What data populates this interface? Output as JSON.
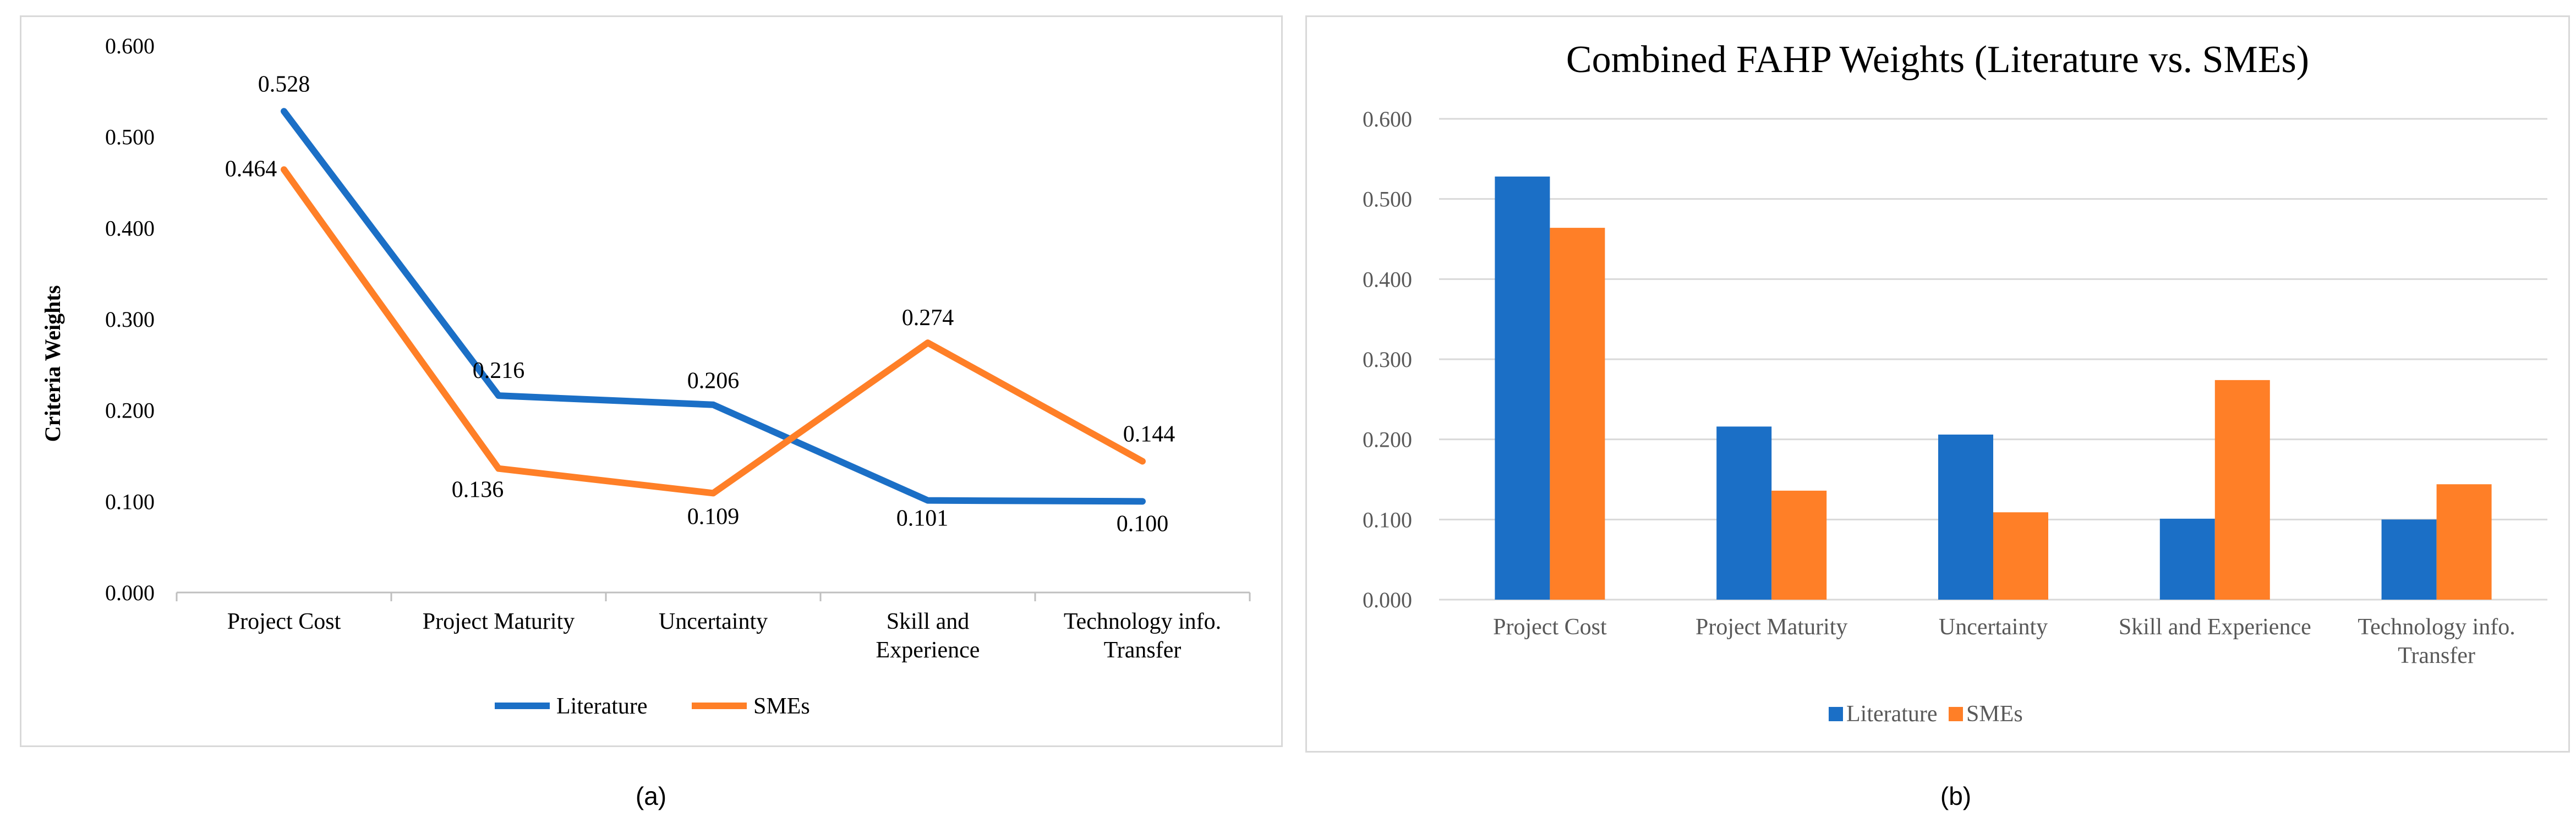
{
  "captions": {
    "a": "(a)",
    "b": "(b)"
  },
  "colors": {
    "literature": "#1b6fc6",
    "smes": "#ff7f27",
    "grid": "#d9d9d9",
    "axis": "#bfbfbf"
  },
  "chart_data": [
    {
      "type": "line",
      "title": "",
      "xlabel": "",
      "ylabel": "Criteria Weights",
      "ylim": [
        0,
        0.6
      ],
      "yticks": [
        "0.000",
        "0.100",
        "0.200",
        "0.300",
        "0.400",
        "0.500",
        "0.600"
      ],
      "grid": false,
      "legend": "bottom",
      "categories": [
        [
          "Project Cost"
        ],
        [
          "Project Maturity"
        ],
        [
          "Uncertainty"
        ],
        [
          "Skill and",
          "Experience"
        ],
        [
          "Technology info.",
          "Transfer"
        ]
      ],
      "series": [
        {
          "name": "Literature",
          "values": [
            0.528,
            0.216,
            0.206,
            0.101,
            0.1
          ],
          "labels": [
            "0.528",
            "0.216",
            "0.206",
            "0.101",
            "0.100"
          ]
        },
        {
          "name": "SMEs",
          "values": [
            0.464,
            0.136,
            0.109,
            0.274,
            0.144
          ],
          "labels": [
            "0.464",
            "0.136",
            "0.109",
            "0.274",
            "0.144"
          ]
        }
      ]
    },
    {
      "type": "bar",
      "title": "Combined FAHP Weights (Literature vs. SMEs)",
      "xlabel": "",
      "ylabel": "",
      "ylim": [
        0,
        0.6
      ],
      "yticks": [
        "0.000",
        "0.100",
        "0.200",
        "0.300",
        "0.400",
        "0.500",
        "0.600"
      ],
      "grid": true,
      "legend": "bottom",
      "categories": [
        [
          "Project Cost"
        ],
        [
          "Project Maturity"
        ],
        [
          "Uncertainty"
        ],
        [
          "Skill and Experience"
        ],
        [
          "Technology info.",
          "Transfer"
        ]
      ],
      "series": [
        {
          "name": "Literature",
          "values": [
            0.528,
            0.216,
            0.206,
            0.101,
            0.1
          ]
        },
        {
          "name": "SMEs",
          "values": [
            0.464,
            0.136,
            0.109,
            0.274,
            0.144
          ]
        }
      ]
    }
  ]
}
